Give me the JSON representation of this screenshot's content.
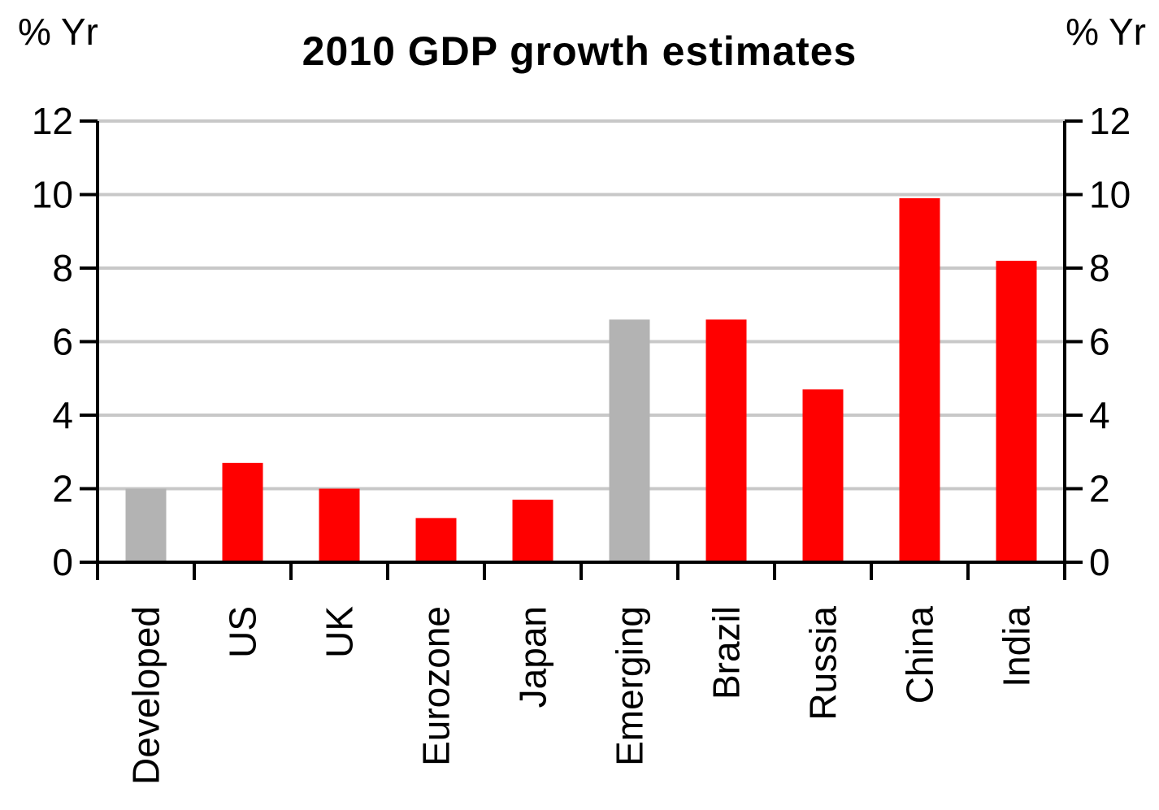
{
  "chart_data": {
    "type": "bar",
    "title": "2010 GDP growth estimates",
    "left_unit_label": "% Yr",
    "right_unit_label": "% Yr",
    "categories": [
      "Developed",
      "US",
      "UK",
      "Eurozone",
      "Japan",
      "Emerging",
      "Brazil",
      "Russia",
      "China",
      "India"
    ],
    "values": [
      2.0,
      2.7,
      2.0,
      1.2,
      1.7,
      6.6,
      6.6,
      4.7,
      9.9,
      8.2
    ],
    "bar_colors": [
      "#b3b3b3",
      "#ff0000",
      "#ff0000",
      "#ff0000",
      "#ff0000",
      "#b3b3b3",
      "#ff0000",
      "#ff0000",
      "#ff0000",
      "#ff0000"
    ],
    "ylim": [
      0,
      12
    ],
    "yticks": [
      "0",
      "2",
      "4",
      "6",
      "8",
      "10",
      "12"
    ],
    "grid": true,
    "gridline_color": "#c8c8c8",
    "axis_color": "#000000",
    "dual_y_axis": true,
    "legend": "none"
  }
}
